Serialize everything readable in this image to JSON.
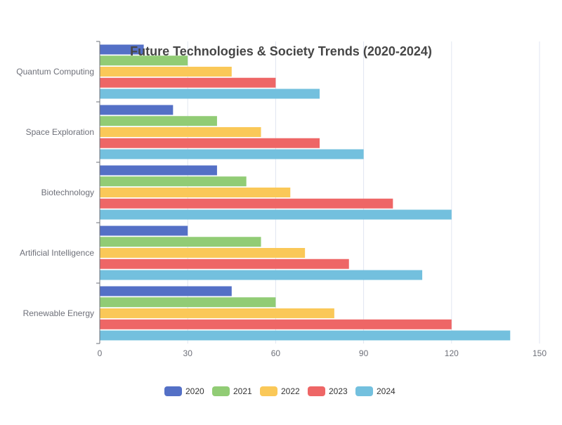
{
  "chart_data": {
    "type": "bar",
    "orientation": "horizontal",
    "title": "Future Technologies & Society Trends (2020-2024)",
    "xlabel": "",
    "ylabel": "",
    "xlim": [
      0,
      150
    ],
    "x_ticks": [
      0,
      30,
      60,
      90,
      120,
      150
    ],
    "categories": [
      "Quantum Computing",
      "Space Exploration",
      "Biotechnology",
      "Artificial Intelligence",
      "Renewable Energy"
    ],
    "series": [
      {
        "name": "2020",
        "color": "#5470c6",
        "values": [
          15,
          25,
          40,
          30,
          45
        ]
      },
      {
        "name": "2021",
        "color": "#91cc75",
        "values": [
          30,
          40,
          50,
          55,
          60
        ]
      },
      {
        "name": "2022",
        "color": "#fac858",
        "values": [
          45,
          55,
          65,
          70,
          80
        ]
      },
      {
        "name": "2023",
        "color": "#ee6666",
        "values": [
          60,
          75,
          100,
          85,
          120
        ]
      },
      {
        "name": "2024",
        "color": "#73c0de",
        "values": [
          75,
          90,
          120,
          110,
          140
        ]
      }
    ],
    "grid": "vertical",
    "legend_position": "bottom-center"
  }
}
